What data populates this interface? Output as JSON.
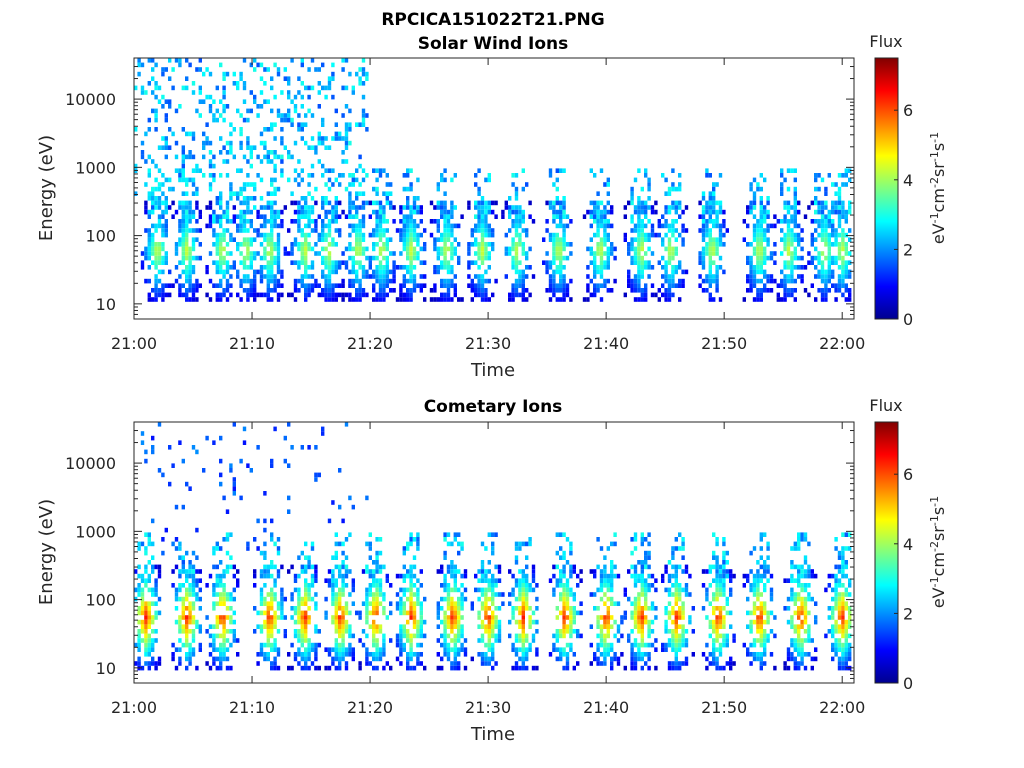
{
  "figure_title": "RPCICA151022T21.PNG",
  "chart_data": [
    {
      "type": "heatmap",
      "title": "Solar Wind Ions",
      "xlabel": "Time",
      "ylabel": "Energy (eV)",
      "x_ticks": [
        "21:00",
        "21:10",
        "21:20",
        "21:30",
        "21:40",
        "21:50",
        "22:00"
      ],
      "x_range_minutes": [
        0,
        61
      ],
      "y_scale": "log",
      "y_range": [
        6,
        40000
      ],
      "y_ticks": [
        {
          "value": 10,
          "label": "10"
        },
        {
          "value": 100,
          "label": "100"
        },
        {
          "value": 1000,
          "label": "1000"
        },
        {
          "value": 10000,
          "label": "10000"
        }
      ],
      "colorbar": {
        "title": "Flux",
        "label": "eV-1cm-2sr-1s-1",
        "range": [
          0,
          7.5
        ],
        "ticks": [
          "0",
          "2",
          "4",
          "6"
        ],
        "colormap": "jet"
      },
      "bursts_minutes": [
        2,
        4.5,
        7.5,
        9.5,
        11.5,
        14.5,
        16.5,
        19,
        21,
        23.5,
        26.5,
        29.5,
        32.5,
        36,
        39.5,
        43,
        45.5,
        49,
        53,
        55.5,
        58.5,
        60
      ],
      "peak_energy_eV": 60,
      "peak_flux": 4.5
    },
    {
      "type": "heatmap",
      "title": "Cometary Ions",
      "xlabel": "Time",
      "ylabel": "Energy (eV)",
      "x_ticks": [
        "21:00",
        "21:10",
        "21:20",
        "21:30",
        "21:40",
        "21:50",
        "22:00"
      ],
      "x_range_minutes": [
        0,
        61
      ],
      "y_scale": "log",
      "y_range": [
        6,
        40000
      ],
      "y_ticks": [
        {
          "value": 10,
          "label": "10"
        },
        {
          "value": 100,
          "label": "100"
        },
        {
          "value": 1000,
          "label": "1000"
        },
        {
          "value": 10000,
          "label": "10000"
        }
      ],
      "colorbar": {
        "title": "Flux",
        "label": "eV-1cm-2sr-1s-1",
        "range": [
          0,
          7.5
        ],
        "ticks": [
          "0",
          "2",
          "4",
          "6"
        ],
        "colormap": "jet"
      },
      "bursts_minutes": [
        1,
        4.5,
        7.5,
        11.5,
        14.5,
        17.5,
        20.5,
        23.5,
        27,
        30,
        33,
        36.5,
        40,
        43,
        46,
        49.5,
        53,
        56.5,
        60
      ],
      "peak_energy_eV": 55,
      "peak_flux": 6.5
    }
  ]
}
